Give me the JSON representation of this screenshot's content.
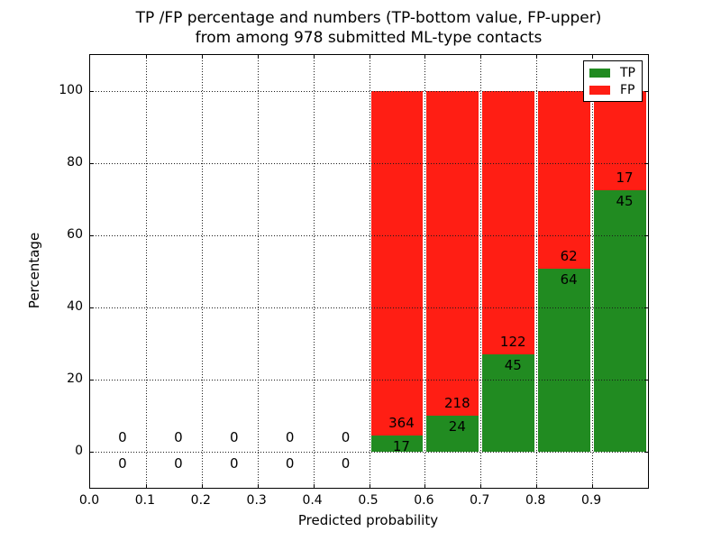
{
  "chart_data": {
    "type": "bar",
    "stacked": true,
    "title_line1": "TP /FP percentage and numbers (TP-bottom value, FP-upper)",
    "title_line2": "from among 978 submitted ML-type contacts",
    "total_submitted": 978,
    "xlabel": "Predicted probability",
    "ylabel": "Percentage",
    "xlim": [
      0.0,
      1.0
    ],
    "ylim": [
      -10,
      110
    ],
    "xtick_values": [
      0.0,
      0.1,
      0.2,
      0.3,
      0.4,
      0.5,
      0.6,
      0.7,
      0.8,
      0.9
    ],
    "xtick_labels": [
      "0.0",
      "0.1",
      "0.2",
      "0.3",
      "0.4",
      "0.5",
      "0.6",
      "0.7",
      "0.8",
      "0.9"
    ],
    "ytick_values": [
      0,
      20,
      40,
      60,
      80,
      100
    ],
    "ytick_labels": [
      "0",
      "20",
      "40",
      "60",
      "80",
      "100"
    ],
    "grid": {
      "style": "dotted",
      "color": "#000000"
    },
    "legend": {
      "position": "upper-right",
      "entries": [
        {
          "label": "TP",
          "color": "#218b21"
        },
        {
          "label": "FP",
          "color": "#ff1e14"
        }
      ]
    },
    "bins": [
      {
        "x0": 0.0,
        "x1": 0.1,
        "tp": 0,
        "fp": 0,
        "tp_pct": 0
      },
      {
        "x0": 0.1,
        "x1": 0.2,
        "tp": 0,
        "fp": 0,
        "tp_pct": 0
      },
      {
        "x0": 0.2,
        "x1": 0.3,
        "tp": 0,
        "fp": 0,
        "tp_pct": 0
      },
      {
        "x0": 0.3,
        "x1": 0.4,
        "tp": 0,
        "fp": 0,
        "tp_pct": 0
      },
      {
        "x0": 0.4,
        "x1": 0.5,
        "tp": 0,
        "fp": 0,
        "tp_pct": 0
      },
      {
        "x0": 0.5,
        "x1": 0.6,
        "tp": 17,
        "fp": 364,
        "tp_pct": 4.5
      },
      {
        "x0": 0.6,
        "x1": 0.7,
        "tp": 24,
        "fp": 218,
        "tp_pct": 9.9
      },
      {
        "x0": 0.7,
        "x1": 0.8,
        "tp": 45,
        "fp": 122,
        "tp_pct": 26.9
      },
      {
        "x0": 0.8,
        "x1": 0.9,
        "tp": 64,
        "fp": 62,
        "tp_pct": 50.8
      },
      {
        "x0": 0.9,
        "x1": 1.0,
        "tp": 45,
        "fp": 17,
        "tp_pct": 72.6
      }
    ]
  }
}
